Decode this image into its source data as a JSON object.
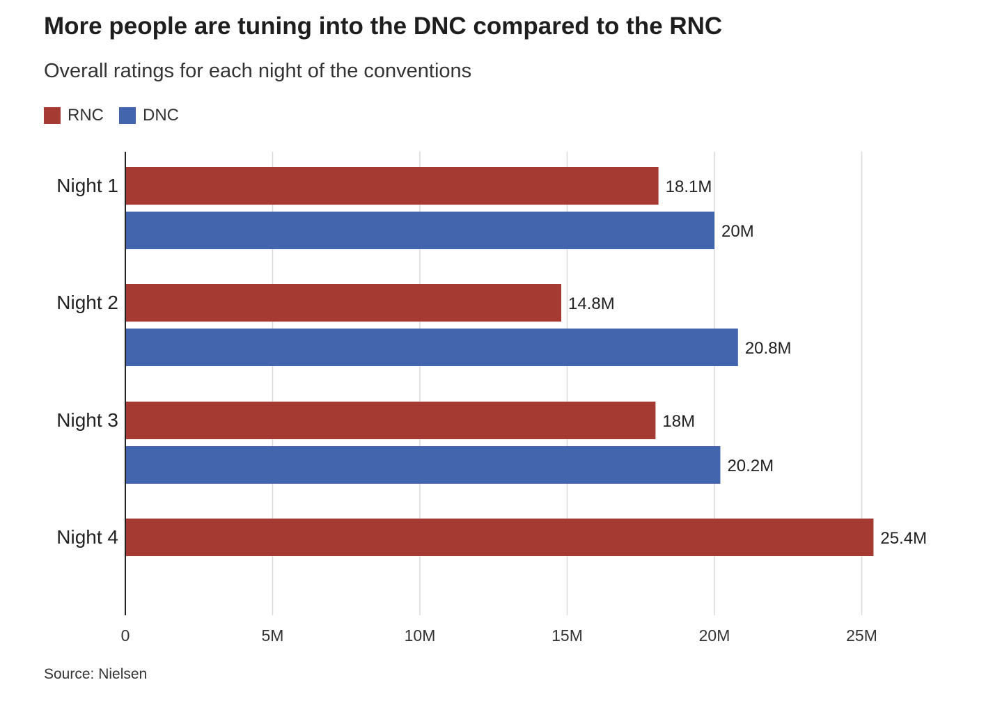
{
  "title": "More people are tuning into the DNC compared to the RNC",
  "subtitle": "Overall ratings for each night of the conventions",
  "source": "Source: Nielsen",
  "colors": {
    "RNC": "#a43a31",
    "DNC": "#4365ad",
    "grid": "#d9d9d9",
    "axis": "#222222"
  },
  "legend": [
    {
      "name": "RNC",
      "color": "#a43a31"
    },
    {
      "name": "DNC",
      "color": "#4365ad"
    }
  ],
  "chart_data": {
    "type": "bar",
    "orientation": "horizontal",
    "categories": [
      "Night 1",
      "Night 2",
      "Night 3",
      "Night 4"
    ],
    "series": [
      {
        "name": "RNC",
        "values": [
          18.1,
          14.8,
          18,
          25.4
        ],
        "labels": [
          "18.1M",
          "14.8M",
          "18M",
          "25.4M"
        ]
      },
      {
        "name": "DNC",
        "values": [
          20,
          20.8,
          20.2,
          null
        ],
        "labels": [
          "20M",
          "20.8M",
          "20.2M",
          null
        ]
      }
    ],
    "xlim": [
      0,
      25
    ],
    "xticks": [
      0,
      5,
      10,
      15,
      20,
      25
    ],
    "xtick_labels": [
      "0",
      "5M",
      "10M",
      "15M",
      "20M",
      "25M"
    ],
    "grid": true,
    "legend_position": "top-left",
    "unit": "millions of viewers"
  }
}
